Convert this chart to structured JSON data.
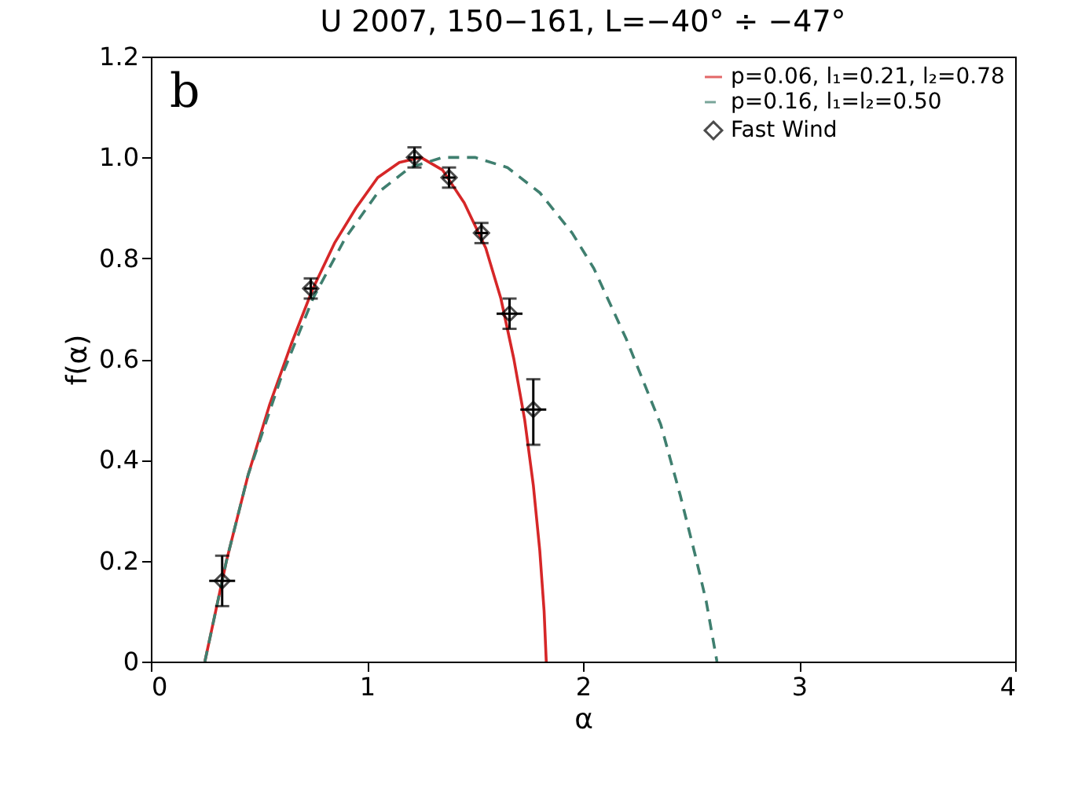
{
  "chart_data": {
    "type": "line",
    "title": "U 2007, 150−161, L=−40° ÷ −47°",
    "xlabel": "α",
    "ylabel": "f(α)",
    "annotations": [
      "b"
    ],
    "xlim": [
      0,
      4
    ],
    "xticks": [
      0,
      1,
      2,
      3,
      4
    ],
    "ylim": [
      0,
      1.2
    ],
    "yticks": [
      0,
      0.2,
      0.4,
      0.6,
      0.8,
      {
        "value": 1,
        "label": "1.0"
      },
      1.2
    ],
    "grid": false,
    "legend": "top right",
    "series": [
      {
        "name": "p=0.06, l₁=0.21, l₂=0.78",
        "color": "#d62728",
        "line_style": "solid",
        "x": [
          0.25,
          0.3,
          0.35,
          0.45,
          0.55,
          0.65,
          0.75,
          0.85,
          0.95,
          1.05,
          1.15,
          1.25,
          1.35,
          1.45,
          1.55,
          1.62,
          1.68,
          1.73,
          1.77,
          1.8,
          1.82,
          1.83
        ],
        "values": [
          0,
          0.1,
          0.2,
          0.37,
          0.51,
          0.63,
          0.74,
          0.83,
          0.9,
          0.96,
          0.99,
          1.0,
          0.975,
          0.91,
          0.82,
          0.72,
          0.6,
          0.48,
          0.35,
          0.22,
          0.1,
          0
        ]
      },
      {
        "name": "p=0.16, l₁=l₂=0.50",
        "color": "#3f7f6f",
        "line_style": "dashed",
        "x": [
          0.25,
          0.3,
          0.35,
          0.45,
          0.6,
          0.75,
          0.9,
          1.05,
          1.2,
          1.35,
          1.5,
          1.65,
          1.8,
          1.95,
          2.05,
          2.2,
          2.36,
          2.45,
          2.52,
          2.57,
          2.62
        ],
        "values": [
          0,
          0.1,
          0.2,
          0.37,
          0.56,
          0.72,
          0.84,
          0.93,
          0.98,
          1.0,
          1.0,
          0.98,
          0.93,
          0.85,
          0.78,
          0.64,
          0.47,
          0.33,
          0.21,
          0.12,
          0
        ]
      },
      {
        "name": "Fast Wind",
        "type": "scatter",
        "color": "#000000",
        "marker": "diamond",
        "x": [
          0.33,
          0.74,
          1.22,
          1.38,
          1.53,
          1.66,
          1.77
        ],
        "values": [
          0.16,
          0.74,
          1.0,
          0.96,
          0.85,
          0.69,
          0.5
        ],
        "errors": [
          [
            0.11,
            0.21
          ],
          0.02,
          0.02,
          0.02,
          0.02,
          0.03,
          [
            0.43,
            0.56
          ]
        ],
        "xerrors": [
          0.06,
          0.03,
          0.03,
          0.03,
          0.03,
          0.06,
          0.06
        ]
      }
    ]
  }
}
